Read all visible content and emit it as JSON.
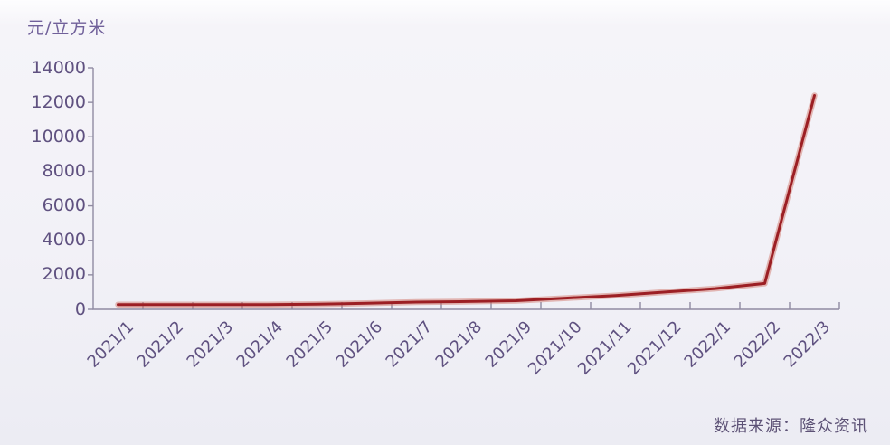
{
  "chart_data": {
    "type": "line",
    "title": "",
    "ylabel": "元/立方米",
    "source": "数据来源：隆众资讯",
    "categories": [
      "2021/1",
      "2021/2",
      "2021/3",
      "2021/4",
      "2021/5",
      "2021/6",
      "2021/7",
      "2021/8",
      "2021/9",
      "2021/10",
      "2021/11",
      "2021/12",
      "2022/1",
      "2022/2",
      "2022/3"
    ],
    "values": [
      280,
      280,
      280,
      280,
      300,
      350,
      420,
      450,
      500,
      650,
      800,
      1000,
      1200,
      1500,
      12400
    ],
    "ylim": [
      0,
      14000
    ],
    "yticks": [
      0,
      2000,
      4000,
      6000,
      8000,
      10000,
      12000,
      14000
    ],
    "grid": false,
    "legend_position": "none",
    "x_tick_style": "between-categories-inward",
    "colors": {
      "line": "#9c1f24",
      "line_glow": "#d2776b",
      "axis": "#908ba2",
      "tick_labels": "#5f5180",
      "unit_label": "#70609a",
      "source_label": "#5d5276",
      "background": "#f2f1f7"
    }
  }
}
